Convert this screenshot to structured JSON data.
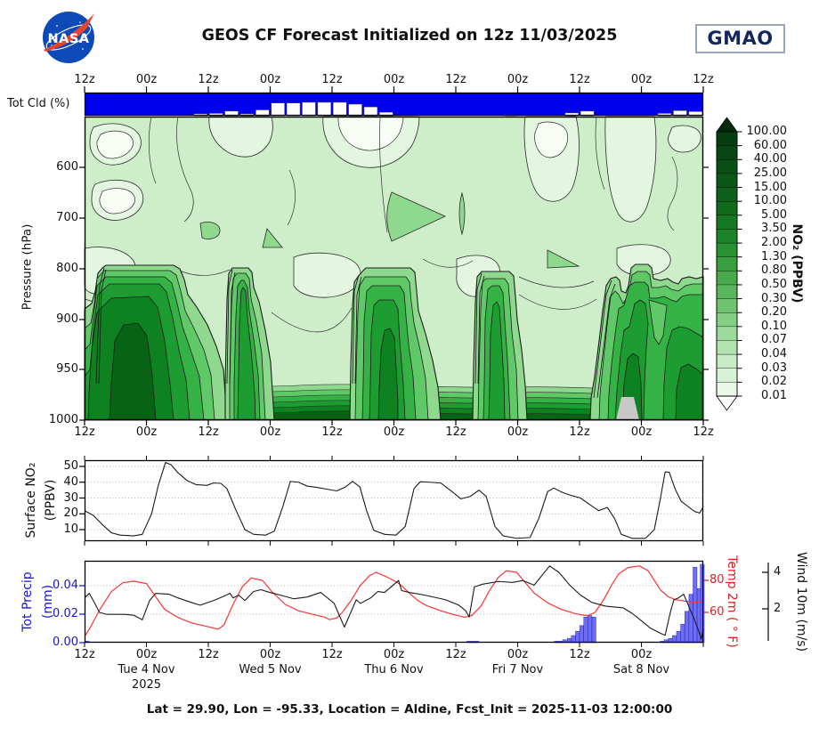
{
  "header": {
    "title": "GEOS CF Forecast Initialized on 12z 11/03/2025",
    "nasa_logo": "NASA",
    "gmao_logo": "GMAO"
  },
  "footer": {
    "caption": "Lat = 29.90, Lon = -95.33, Location = Aldine, Fcst_Init = 2025-11-03 12:00:00"
  },
  "axes": {
    "time_labels": [
      "12z",
      "00z",
      "12z",
      "00z",
      "12z",
      "00z",
      "12z",
      "00z",
      "12z",
      "00z",
      "12z"
    ],
    "bottom_time_labels": [
      "12z",
      "00z",
      "12z",
      "00z",
      "12z",
      "00z",
      "12z",
      "00z",
      "12z",
      "00z"
    ],
    "date_labels": [
      "Tue 4 Nov",
      "Wed 5 Nov",
      "Thu 6 Nov",
      "Fri 7 Nov",
      "Sat 8 Nov"
    ],
    "year_label": "2025"
  },
  "cloud_bar": {
    "label": "Tot Cld (%)",
    "fill_color": "#0000ee"
  },
  "main_panel": {
    "ylabel": "Pressure (hPa)",
    "ytick_labels": [
      "600",
      "700",
      "800",
      "900",
      "950",
      "1000"
    ],
    "colorbar": {
      "label": "NO₂ (PPBV)",
      "tick_labels": [
        "100.00",
        "60.00",
        "40.00",
        "25.00",
        "15.00",
        "10.00",
        "5.00",
        "3.50",
        "2.00",
        "1.30",
        "0.80",
        "0.50",
        "0.30",
        "0.20",
        "0.10",
        "0.07",
        "0.04",
        "0.03",
        "0.02",
        "0.01"
      ],
      "over_color": "#042c0b",
      "under_color": "#ffffff",
      "segment_colors": [
        "#063d10",
        "#074512",
        "#094e15",
        "#0b5717",
        "#0d611a",
        "#106b1d",
        "#147722",
        "#1c8428",
        "#2a9133",
        "#389e3e",
        "#48aa4b",
        "#5ab65c",
        "#6fc370",
        "#85cf85",
        "#9cda9b",
        "#b2e3b0",
        "#c7ecc5",
        "#d9f2d7",
        "#e9f8e7"
      ]
    }
  },
  "surface_panel": {
    "ylabel_line1": "Surface NO₂",
    "ylabel_line2": "(PPBV)",
    "ytick_labels": [
      "50",
      "40",
      "30",
      "20",
      "10"
    ],
    "ytick_values": [
      50,
      40,
      30,
      20,
      10
    ]
  },
  "bottom_panel": {
    "precip_label_line1": "Tot Precip",
    "precip_label_line2": "(mm)",
    "precip_tick_labels": [
      "0.04",
      "0.02",
      "0.00"
    ],
    "precip_tick_values": [
      0.04,
      0.02,
      0.0
    ],
    "temp_label": "Temp 2m ( ° F)",
    "temp_tick_labels": [
      "80",
      "60"
    ],
    "temp_tick_values": [
      80,
      60
    ],
    "wind_label": "Wind 10m (m/s)",
    "wind_tick_labels": [
      "4",
      "2"
    ],
    "wind_tick_values": [
      4,
      2
    ]
  },
  "chart_data": [
    {
      "type": "bar",
      "name": "total_cloud_percent",
      "title": "Tot Cld (%)",
      "x_hours_bin_width": 3,
      "x_start_hour": 0,
      "values_percent": [
        100,
        100,
        100,
        100,
        100,
        100,
        100,
        92,
        90,
        80,
        92,
        75,
        45,
        45,
        42,
        42,
        42,
        50,
        62,
        85,
        100,
        100,
        100,
        100,
        100,
        100,
        100,
        96,
        100,
        100,
        100,
        88,
        80,
        100,
        100,
        100,
        100,
        90,
        78,
        82
      ],
      "note": "blue bar = cloud fraction; white notches rise where cloud < 100%"
    },
    {
      "type": "heatmap",
      "name": "no2_pressure_time_contour",
      "ylabel": "Pressure (hPa)",
      "yticks": [
        600,
        700,
        800,
        900,
        950,
        1000
      ],
      "y_range_hpa": [
        500,
        1000
      ],
      "x_range_hours": [
        0,
        120
      ],
      "units": "PPBV",
      "levels": [
        0.01,
        0.02,
        0.03,
        0.04,
        0.07,
        0.1,
        0.2,
        0.3,
        0.5,
        0.8,
        1.3,
        2.0,
        3.5,
        5.0,
        10.0,
        15.0,
        25.0,
        40.0,
        60.0,
        100.0
      ],
      "description": "Filled green contours of NO2: dark high-NO2 towers (10-60 PPBV) fill the boundary layer 1000-800 hPa each night (five towers, one per day), collapsing in the afternoons; mid-troposphere values < 0.1 PPBV (pale); persistent dark layer below ~960 hPa; small gray no-data wedge near 00z Sat 8 Nov at the bottom."
    },
    {
      "type": "line",
      "name": "surface_no2",
      "ylabel": "Surface NO2 (PPBV)",
      "ylim": [
        2,
        55
      ],
      "x_hours": [
        0,
        1.7,
        3.5,
        5.2,
        6.9,
        9.5,
        11.2,
        13,
        14.3,
        15.7,
        16.8,
        18.1,
        19.9,
        21.6,
        23.7,
        25,
        26.4,
        27.6,
        29.4,
        31.1,
        32.8,
        35.1,
        36.8,
        38.5,
        39.9,
        41.5,
        43.2,
        44.9,
        47.2,
        48.9,
        50.6,
        52,
        53.4,
        54.7,
        56.1,
        58.2,
        60.4,
        62.2,
        63.9,
        65.1,
        66.8,
        69.1,
        71.3,
        73,
        74.8,
        76.5,
        77.9,
        79.6,
        81.2,
        83.8,
        86.4,
        88.1,
        89.8,
        91,
        92.7,
        94.5,
        96.2,
        97.9,
        99.7,
        101.4,
        102.8,
        104.1,
        106.2,
        108.8,
        110.5,
        111.7,
        112.6,
        113.4,
        114.5,
        115.7,
        116.9,
        118.3,
        119.3,
        120
      ],
      "values": [
        22,
        19,
        13,
        8,
        6.5,
        6,
        7,
        20,
        38,
        52.5,
        51,
        46,
        41,
        38.5,
        38,
        39.5,
        39.3,
        36,
        22,
        10,
        7,
        6.5,
        9,
        25,
        40.5,
        40,
        37.5,
        36.8,
        35.5,
        34.5,
        37,
        40.5,
        37,
        22,
        9.5,
        7,
        6.5,
        12,
        36,
        40.3,
        40,
        39.5,
        34,
        29.5,
        31,
        35,
        31,
        12,
        6,
        4.5,
        5,
        17,
        34,
        36.3,
        33.5,
        31.5,
        30,
        26,
        22,
        24,
        17,
        7,
        4.5,
        4.5,
        10,
        30,
        46.5,
        46.3,
        36,
        28,
        25,
        21.5,
        20.5,
        24.5
      ]
    },
    {
      "type": "line+bar",
      "name": "surface_met",
      "series": [
        {
          "name": "tot_precip_mm",
          "axis": "left",
          "color": "#6e6ef2",
          "style": "bar",
          "ylim": [
            0,
            0.0575
          ],
          "x_hours": [
            0.5,
            74.5,
            75.3,
            76.1,
            91.5,
            92.3,
            93.1,
            94,
            94.8,
            95.6,
            96.4,
            97.2,
            98,
            98.8,
            112,
            112.8,
            113.6,
            114.4,
            115.2,
            116,
            116.8,
            117.6,
            118.4,
            119.2,
            119.8
          ],
          "values": [
            0.001,
            0.001,
            0.001,
            0.001,
            0.001,
            0.001,
            0.002,
            0.003,
            0.005,
            0.008,
            0.012,
            0.018,
            0.019,
            0.018,
            0.001,
            0.002,
            0.003,
            0.005,
            0.008,
            0.013,
            0.022,
            0.034,
            0.053,
            0.038,
            0.055
          ]
        },
        {
          "name": "temp_2m_F",
          "axis": "right",
          "color": "#ff3333",
          "style": "line",
          "ylim": [
            44,
            91
          ],
          "x_hours": [
            0,
            1,
            3,
            5.2,
            7.4,
            9.5,
            12,
            13.3,
            15.5,
            18,
            20.7,
            24,
            25.9,
            27,
            28.8,
            30.6,
            32.3,
            34.5,
            36.3,
            38.9,
            41.5,
            44,
            46.6,
            47.5,
            48.9,
            50,
            51.8,
            53.5,
            55.3,
            56.5,
            58.7,
            61,
            63,
            64.8,
            66.5,
            69.1,
            71.7,
            73.7,
            75.1,
            76.9,
            78.6,
            80.3,
            81.8,
            83.8,
            85.1,
            87.2,
            89.8,
            92.4,
            94.9,
            96.2,
            97.6,
            99,
            100.7,
            102.4,
            103.6,
            105.4,
            107.6,
            109.3,
            110.5,
            111.7,
            113.1,
            114.5,
            116.5,
            118.3,
            120
          ],
          "values": [
            45,
            50,
            62,
            73,
            78.5,
            79.5,
            78,
            72,
            62,
            57,
            53.5,
            51,
            49.5,
            52,
            65,
            76,
            81.5,
            80,
            73,
            65,
            61,
            59,
            57,
            55.5,
            56.5,
            60,
            68,
            77,
            83,
            85,
            82,
            78,
            72,
            67,
            64,
            61,
            58.5,
            57,
            58,
            64,
            74,
            82,
            86,
            85,
            80,
            72,
            66,
            62,
            59.5,
            58.5,
            58,
            60,
            68,
            78,
            84,
            88,
            89,
            86,
            80,
            74,
            70,
            68,
            67,
            66.5,
            66.5
          ]
        },
        {
          "name": "wind_10m_ms",
          "axis": "far_right",
          "color": "#1a1a1a",
          "style": "line",
          "ylim": [
            0.2,
            4.6
          ],
          "x_hours": [
            0,
            0.9,
            1.7,
            2.9,
            4.3,
            7.8,
            9.5,
            11.2,
            12.6,
            13.8,
            16.4,
            18.1,
            20.7,
            22.4,
            25,
            27.1,
            28.2,
            28.8,
            29.9,
            31.1,
            32.8,
            34.2,
            35.9,
            38,
            40.6,
            43.2,
            45.8,
            48.4,
            50.4,
            52.7,
            53.5,
            55.5,
            56.9,
            58.2,
            60.9,
            61.5,
            63,
            66,
            70,
            72.6,
            73.9,
            74.6,
            75.6,
            77.2,
            80.3,
            83,
            85,
            87.2,
            90.2,
            92,
            94.1,
            96.2,
            98.4,
            101,
            104.5,
            106.2,
            108,
            109.7,
            111.4,
            112.6,
            113.6,
            114.3,
            115.2,
            116.2,
            117.4,
            118.3,
            119.1,
            119.6,
            120
          ],
          "values": [
            2.6,
            2.85,
            2.45,
            1.8,
            1.7,
            1.7,
            1.65,
            1.4,
            2.45,
            2.85,
            2.8,
            2.6,
            2.35,
            2.2,
            2.45,
            2.7,
            2.85,
            2.6,
            2.75,
            2.45,
            2.95,
            3.05,
            2.9,
            2.75,
            2.55,
            2.65,
            2.9,
            2.3,
            1.0,
            2.5,
            2.3,
            2.6,
            2.95,
            2.9,
            3.55,
            3.0,
            2.9,
            2.75,
            2.5,
            2.2,
            1.9,
            1.55,
            3.2,
            3.35,
            3.5,
            3.45,
            3.55,
            3.3,
            4.35,
            4.0,
            3.3,
            2.75,
            2.35,
            2.15,
            2.05,
            1.75,
            1.35,
            0.95,
            0.7,
            0.55,
            1.8,
            2.5,
            2.6,
            2.8,
            2.0,
            1.4,
            0.8,
            0.35,
            0.9
          ]
        }
      ]
    }
  ]
}
